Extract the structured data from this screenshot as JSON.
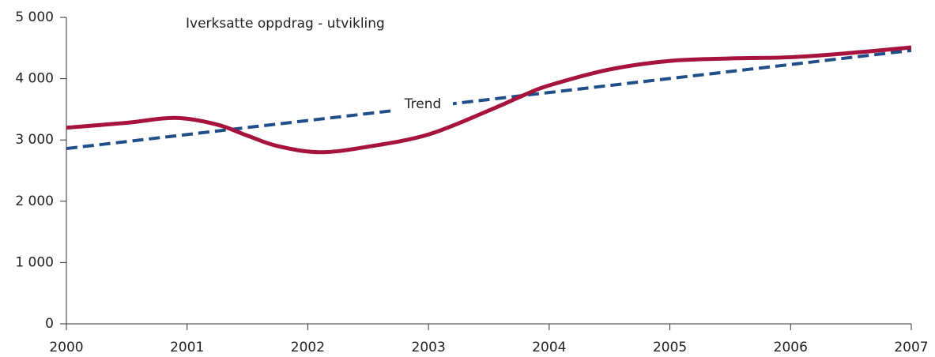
{
  "chart_data": {
    "type": "line",
    "x": [
      2000,
      2000.5,
      2000.9,
      2001.25,
      2001.5,
      2001.75,
      2002.1,
      2002.5,
      2003,
      2003.5,
      2003.8,
      2004,
      2004.5,
      2005,
      2005.5,
      2006,
      2006.5,
      2007
    ],
    "series": [
      {
        "name": "Iverksatte oppdrag - utvikling",
        "color": "#a6133c",
        "values": [
          3200,
          3280,
          3360,
          3250,
          3070,
          2900,
          2800,
          2890,
          3090,
          3480,
          3740,
          3890,
          4150,
          4290,
          4330,
          4350,
          4420,
          4510
        ]
      },
      {
        "name": "Trend",
        "color": "#1f4e89",
        "dashed": true,
        "values": [
          2860,
          2974,
          3066,
          3146,
          3203,
          3260,
          3340,
          3431,
          3546,
          3660,
          3729,
          3774,
          3889,
          4003,
          4117,
          4231,
          4346,
          4460
        ]
      }
    ],
    "xlim": [
      2000,
      2007
    ],
    "xticks": [
      2000,
      2001,
      2002,
      2003,
      2004,
      2005,
      2006,
      2007
    ],
    "ylim": [
      0,
      5000
    ],
    "yticks": [
      0,
      {
        "value": 1000,
        "label": "1 000"
      },
      {
        "value": 2000,
        "label": "2 000"
      },
      {
        "value": 3000,
        "label": "3 000"
      },
      {
        "value": 4000,
        "label": "4 000"
      },
      {
        "value": 5000,
        "label": "5 000"
      }
    ]
  }
}
